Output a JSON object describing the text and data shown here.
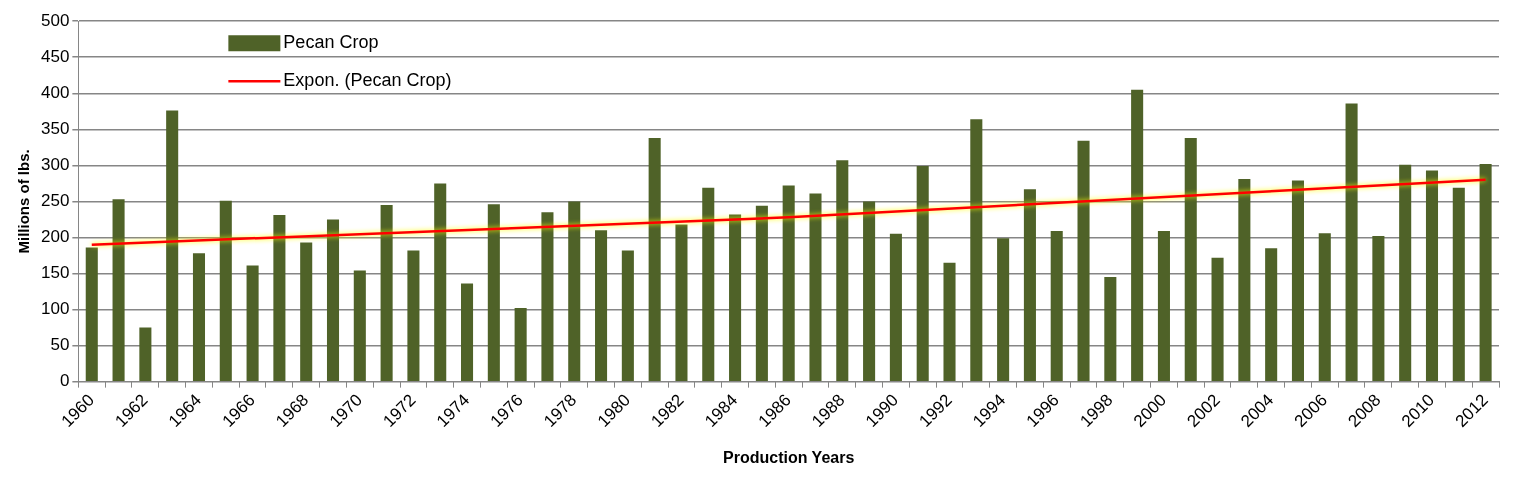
{
  "chart_data": {
    "type": "bar",
    "xlabel": "Production Years",
    "ylabel": "Millions of lbs.",
    "categories": [
      "1960",
      null,
      "1962",
      null,
      "1964",
      null,
      "1966",
      null,
      "1968",
      null,
      "1970",
      null,
      "1972",
      null,
      "1974",
      null,
      "1976",
      null,
      "1978",
      null,
      "1980",
      null,
      "1982",
      null,
      "1984",
      null,
      "1986",
      null,
      "1988",
      null,
      "1990",
      null,
      "1992",
      null,
      "1994",
      null,
      "1996",
      null,
      "1998",
      null,
      "2000",
      null,
      "2002",
      null,
      "2004",
      null,
      "2006",
      null,
      "2008",
      null,
      "2010",
      null,
      "2012"
    ],
    "series": [
      {
        "name": "Pecan Crop",
        "color": "#4f6228",
        "values": [
          186,
          253,
          75,
          376,
          178,
          251,
          161,
          231,
          193,
          225,
          154,
          245,
          182,
          275,
          136,
          246,
          102,
          235,
          250,
          210,
          182,
          338,
          218,
          269,
          232,
          244,
          272,
          261,
          307,
          250,
          205,
          299,
          165,
          364,
          199,
          267,
          209,
          334,
          145,
          405,
          209,
          338,
          172,
          281,
          185,
          279,
          206,
          386,
          202,
          301,
          293,
          269,
          302
        ]
      },
      {
        "name": "Expon. (Pecan Crop)",
        "type": "line",
        "color": "#ff0000",
        "values": [
          190,
          null,
          null,
          null,
          null,
          null,
          null,
          null,
          null,
          null,
          null,
          null,
          null,
          null,
          null,
          null,
          null,
          null,
          null,
          null,
          null,
          null,
          null,
          null,
          null,
          null,
          228,
          null,
          null,
          null,
          null,
          null,
          null,
          null,
          null,
          null,
          null,
          null,
          null,
          null,
          null,
          null,
          null,
          null,
          null,
          null,
          null,
          null,
          null,
          null,
          null,
          null,
          280
        ]
      }
    ],
    "ylim": [
      0,
      500
    ],
    "yticks": [
      0,
      50,
      100,
      150,
      200,
      250,
      300,
      350,
      400,
      450,
      500
    ],
    "grid": "y",
    "legend": "top left"
  }
}
